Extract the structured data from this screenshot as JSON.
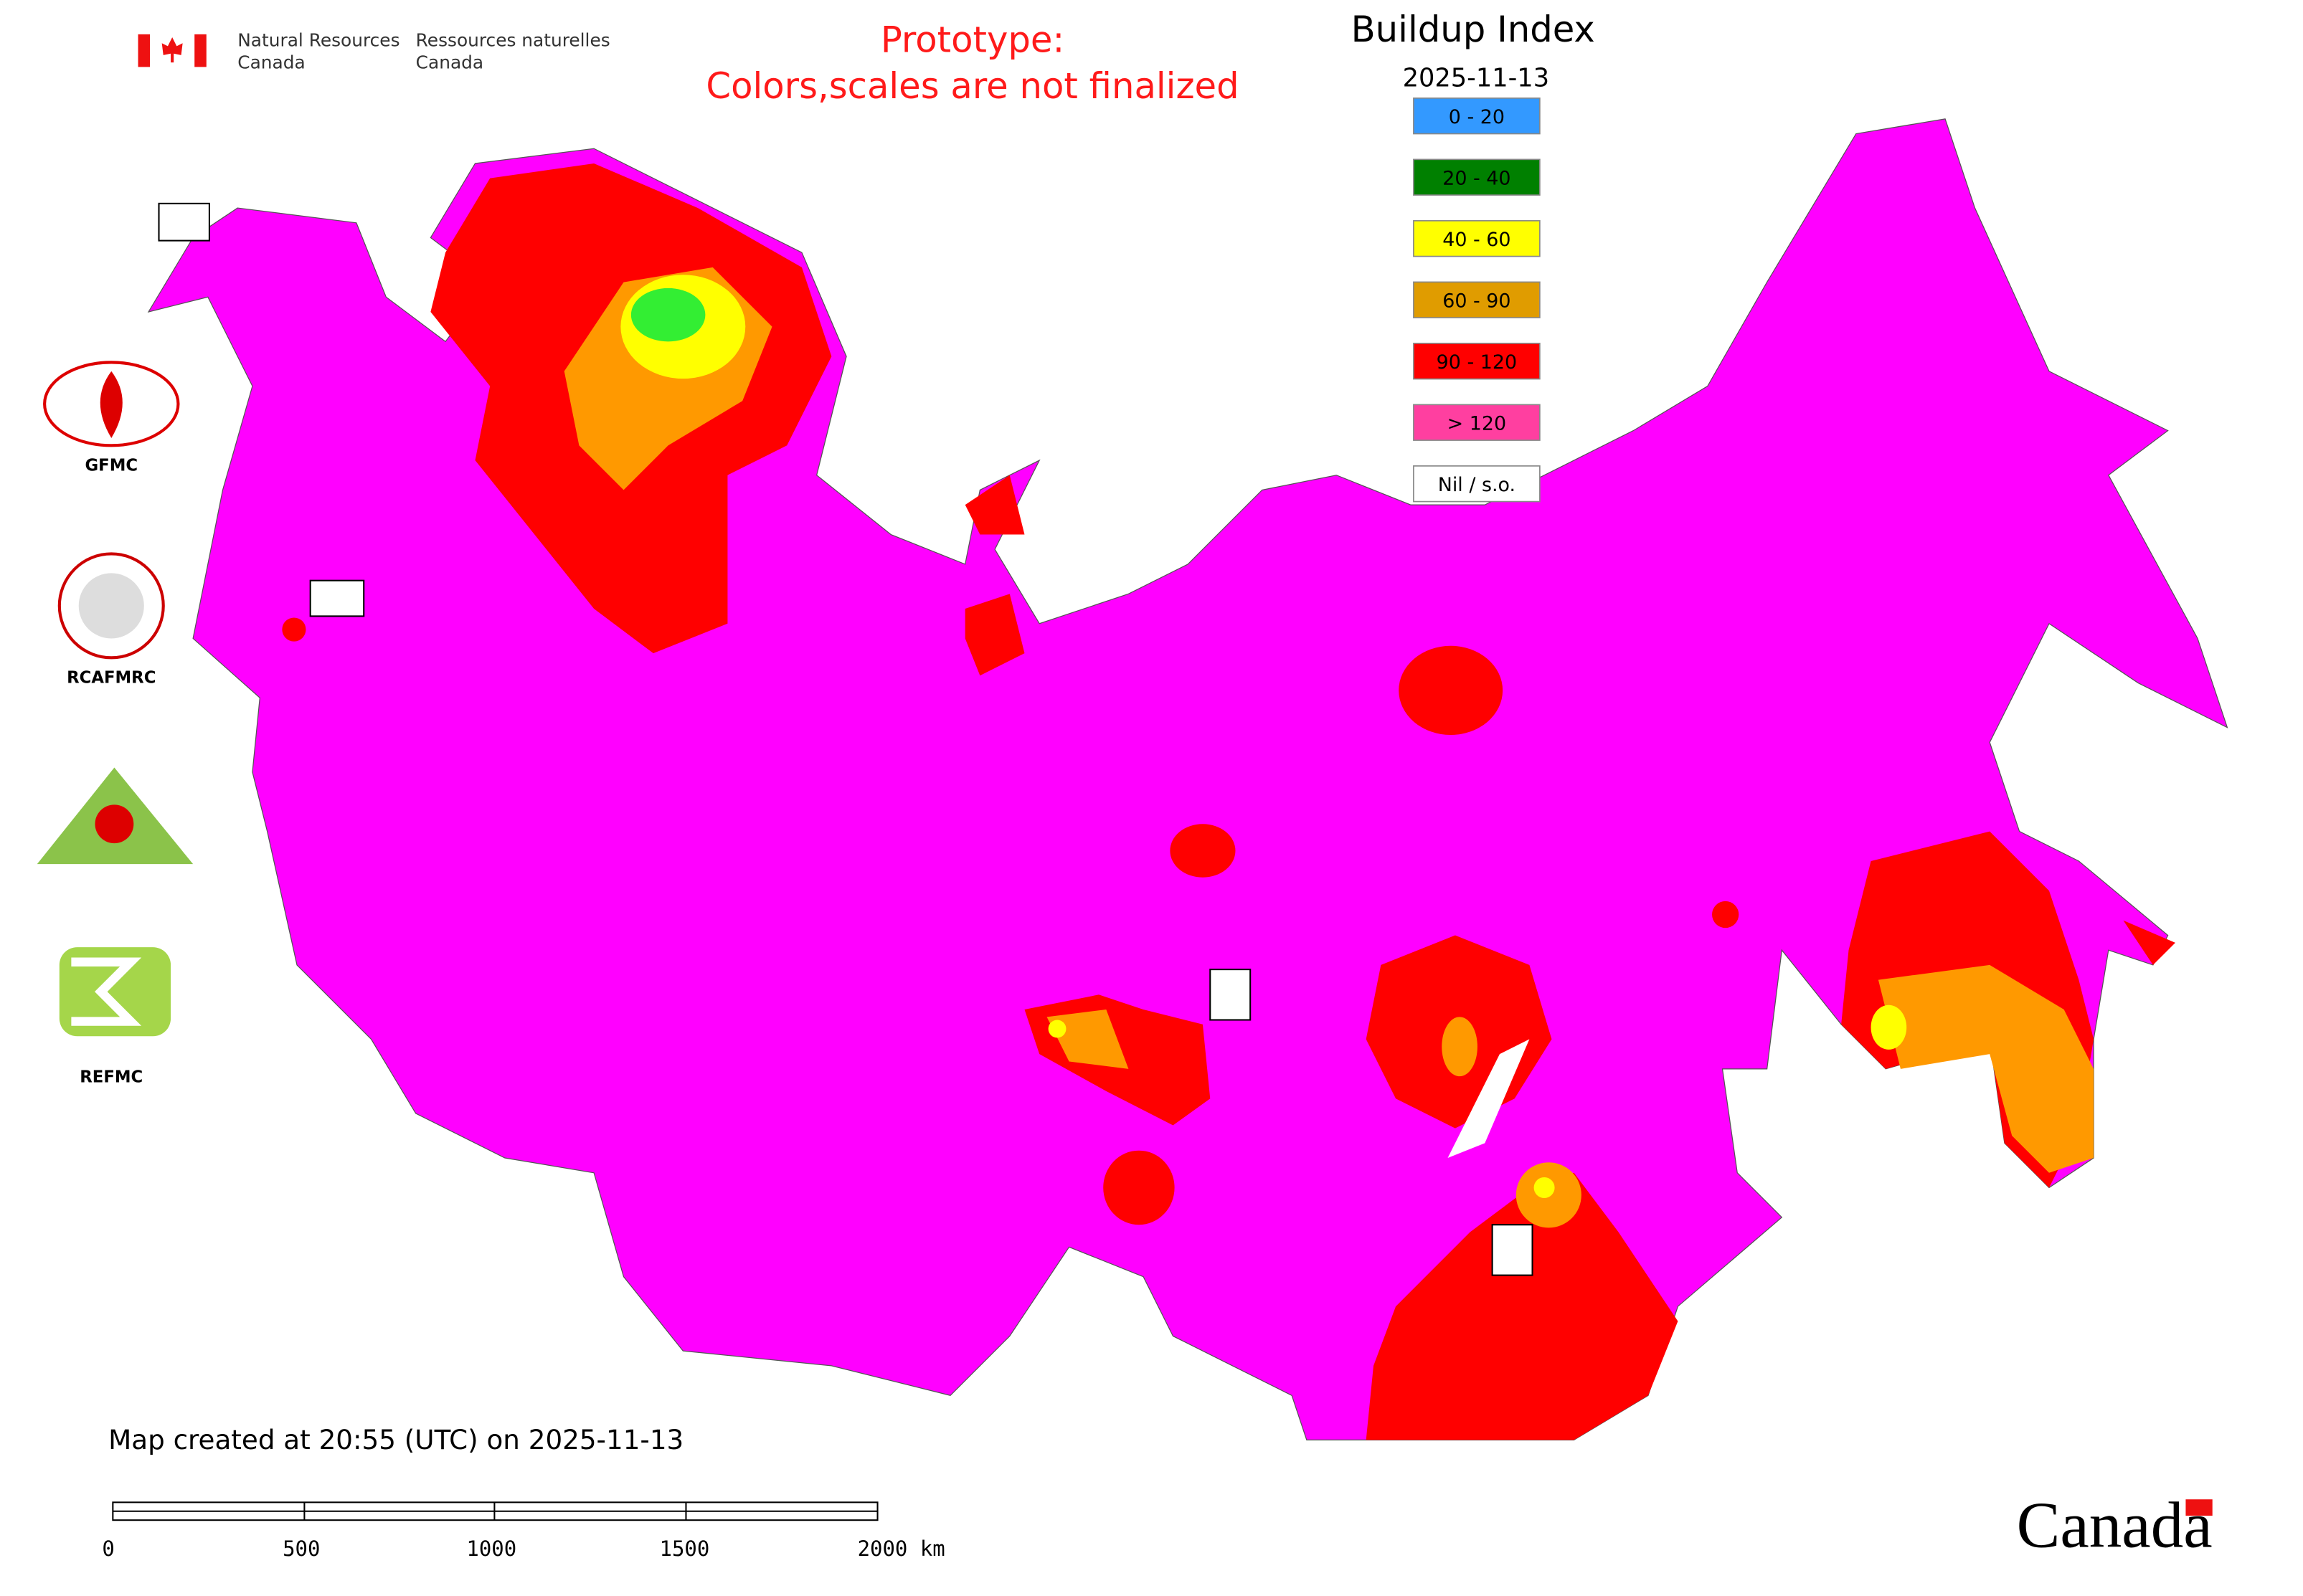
{
  "header": {
    "agency_en": [
      "Natural Resources",
      "Canada"
    ],
    "agency_fr": [
      "Ressources naturelles",
      "Canada"
    ],
    "notice": [
      "Prototype:",
      "Colors,scales are not finalized"
    ]
  },
  "legend": {
    "title": "Buildup Index",
    "date": "2025-11-13",
    "items": [
      {
        "label": "0 - 20",
        "color": "#3399ff"
      },
      {
        "label": "20 - 40",
        "color": "#008000"
      },
      {
        "label": "40 - 60",
        "color": "#ffff00"
      },
      {
        "label": "60 - 90",
        "color": "#e09c00"
      },
      {
        "label": "90 - 120",
        "color": "#ff0000"
      },
      {
        "label": "> 120",
        "color": "#ff3fa0"
      },
      {
        "label": "Nil / s.o.",
        "color": "#ffffff"
      }
    ]
  },
  "logos": [
    "GFMC",
    "RCAFMRC",
    "REFMC"
  ],
  "footer": {
    "created": "Map created at 20:55 (UTC) on 2025-11-13",
    "wordmark": "Canada"
  },
  "scale_bar": {
    "labels": [
      "0",
      "500",
      "1000",
      "1500",
      "2000 km"
    ]
  }
}
